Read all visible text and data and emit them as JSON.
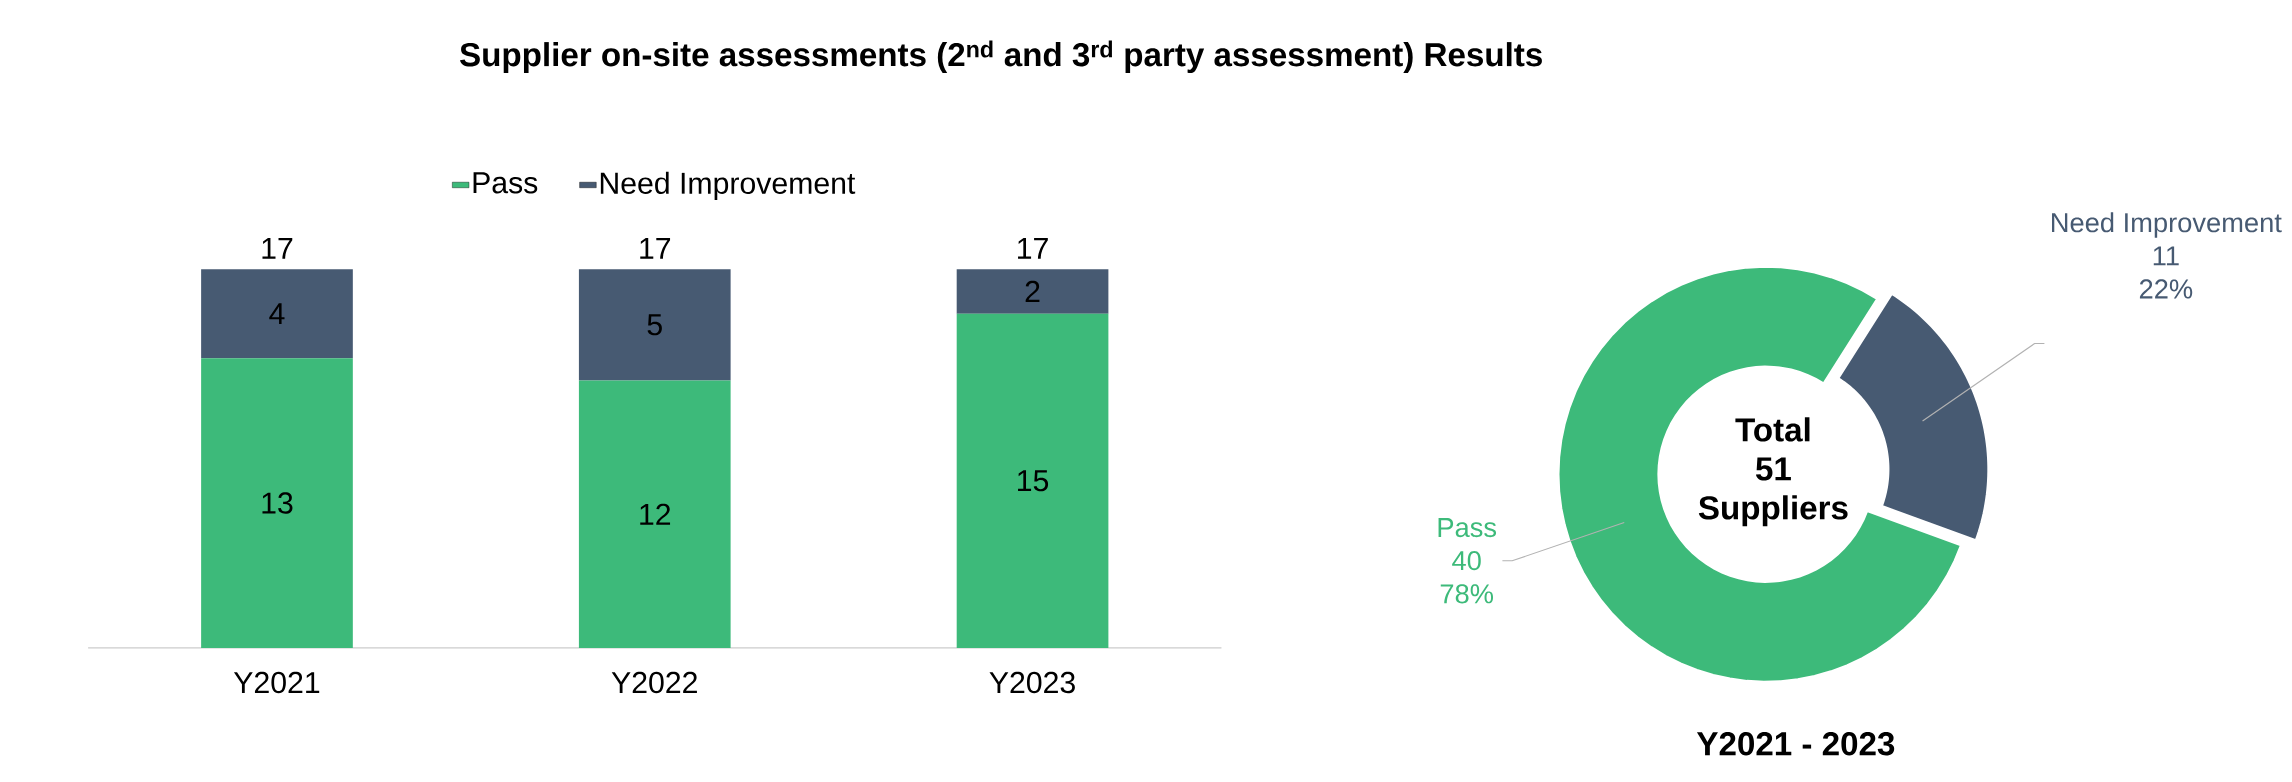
{
  "chart_data": [
    {
      "type": "bar",
      "title": "Supplier on-site assessments (2$^{nd}$ and 3$^{rd}$ party assessment) Results",
      "categories": [
        "Y2021",
        "Y2022",
        "Y2023"
      ],
      "stacked": true,
      "series": [
        {
          "name": "Pass",
          "color": "#3dba7a",
          "values": [
            13,
            12,
            15
          ]
        },
        {
          "name": "Need Improvement",
          "color": "#475a72",
          "values": [
            4,
            5,
            2
          ]
        }
      ],
      "data_labels": true,
      "totals": [
        "17",
        "17",
        "17"
      ],
      "legend": "top"
    },
    {
      "type": "donut",
      "title": "Y2021 - 2023",
      "categories": [
        "Pass",
        "Need Improvement"
      ],
      "values": [
        40,
        11
      ],
      "colors": [
        "#3dba7a",
        "#475a72"
      ],
      "data_labels": true,
      "annotations": [
        "Total",
        "51",
        "Suppliers",
        {
          "text": "78%",
          "x": "Pass"
        },
        {
          "text": "22%",
          "x": "Need Improvement"
        }
      ]
    }
  ]
}
